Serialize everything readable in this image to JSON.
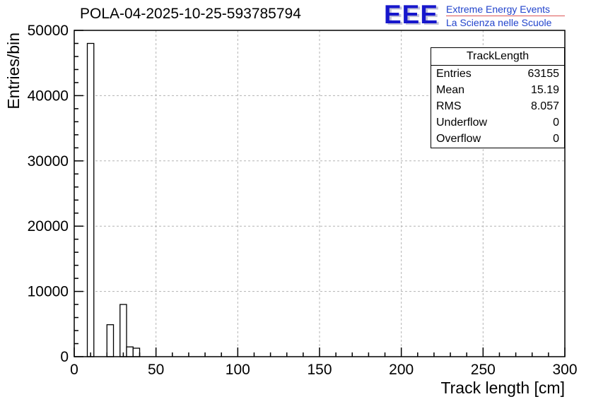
{
  "title": "POLA-04-2025-10-25-593785794",
  "logo": {
    "text": "EEE",
    "line1": "Extreme Energy Events",
    "line2": "La Scienza nelle Scuole",
    "text_color": "#1717cc",
    "lines_color": "#2244cc",
    "accent_color": "#dd5555"
  },
  "stats": {
    "title": "TrackLength",
    "rows": [
      {
        "label": "Entries",
        "value": "63155"
      },
      {
        "label": "Mean",
        "value": "15.19"
      },
      {
        "label": "RMS",
        "value": "8.057"
      },
      {
        "label": "Underflow",
        "value": "0"
      },
      {
        "label": "Overflow",
        "value": "0"
      }
    ]
  },
  "chart_data": {
    "type": "bar",
    "title": "POLA-04-2025-10-25-593785794",
    "xlabel": "Track length [cm]",
    "ylabel": "Entries/bin",
    "xlim": [
      0,
      300
    ],
    "ylim": [
      0,
      50000
    ],
    "xticks": [
      0,
      50,
      100,
      150,
      200,
      250,
      300
    ],
    "yticks": [
      0,
      10000,
      20000,
      30000,
      40000,
      50000
    ],
    "x_minor_step": 10,
    "y_minor_step": 2000,
    "grid": true,
    "legend": "none",
    "bins": [
      {
        "x0": 8,
        "x1": 12,
        "y": 48000
      },
      {
        "x0": 20,
        "x1": 24,
        "y": 4900
      },
      {
        "x0": 28,
        "x1": 32,
        "y": 8000
      },
      {
        "x0": 32,
        "x1": 36,
        "y": 1500
      },
      {
        "x0": 36,
        "x1": 40,
        "y": 1300
      }
    ]
  }
}
